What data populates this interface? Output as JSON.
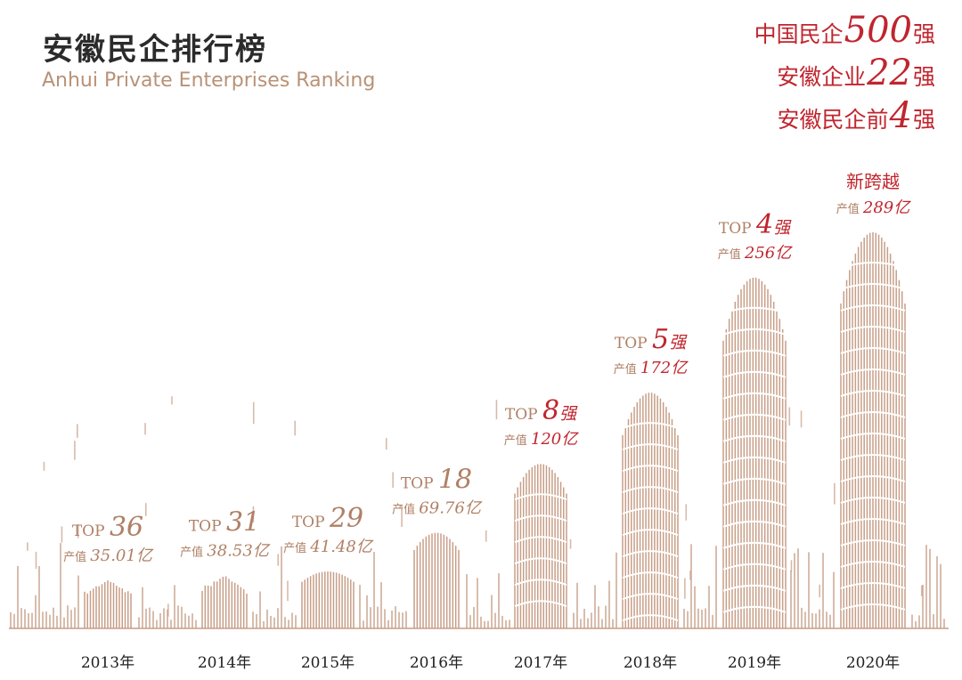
{
  "header": {
    "title_cn": "安徽民企排行榜",
    "title_en": "Anhui Private Enterprises Ranking"
  },
  "badges": [
    {
      "prefix": "中国民企",
      "number": "500",
      "suffix": "强"
    },
    {
      "prefix": "安徽企业",
      "number": "22",
      "suffix": "强"
    },
    {
      "prefix": "安徽民企前",
      "number": "4",
      "suffix": "强"
    }
  ],
  "colors": {
    "bar": "#c79e87",
    "accent": "#c0252e",
    "text_brown": "#b08066",
    "title": "#2b2b2b"
  },
  "chart_data": {
    "type": "bar",
    "title": "",
    "xlabel": "",
    "ylabel": "",
    "categories": [
      "2013年",
      "2014年",
      "2015年",
      "2016年",
      "2017年",
      "2018年",
      "2019年",
      "2020年"
    ],
    "series": [
      {
        "name": "产值",
        "unit": "亿",
        "values": [
          35.01,
          38.53,
          41.48,
          69.76,
          120,
          172,
          256,
          289
        ]
      }
    ],
    "rank_labels": [
      {
        "top": "TOP",
        "rank": "36",
        "suffix": ""
      },
      {
        "top": "TOP",
        "rank": "31",
        "suffix": ""
      },
      {
        "top": "TOP",
        "rank": "29",
        "suffix": ""
      },
      {
        "top": "TOP",
        "rank": "18",
        "suffix": ""
      },
      {
        "top": "TOP",
        "rank": "8",
        "suffix": "强"
      },
      {
        "top": "TOP",
        "rank": "5",
        "suffix": "强"
      },
      {
        "top": "TOP",
        "rank": "4",
        "suffix": "强"
      },
      {
        "top": "",
        "rank": "新跨越",
        "suffix": ""
      }
    ],
    "value_labels": [
      {
        "prefix": "产值",
        "value": "35.01亿"
      },
      {
        "prefix": "产值",
        "value": "38.53亿"
      },
      {
        "prefix": "产值",
        "value": "41.48亿"
      },
      {
        "prefix": "产值",
        "value": "69.76亿"
      },
      {
        "prefix": "产值",
        "value": "120亿"
      },
      {
        "prefix": "产值",
        "value": "172亿"
      },
      {
        "prefix": "产值",
        "value": "256亿"
      },
      {
        "prefix": "产值",
        "value": "289亿"
      }
    ],
    "highlight_from_index": 4
  }
}
